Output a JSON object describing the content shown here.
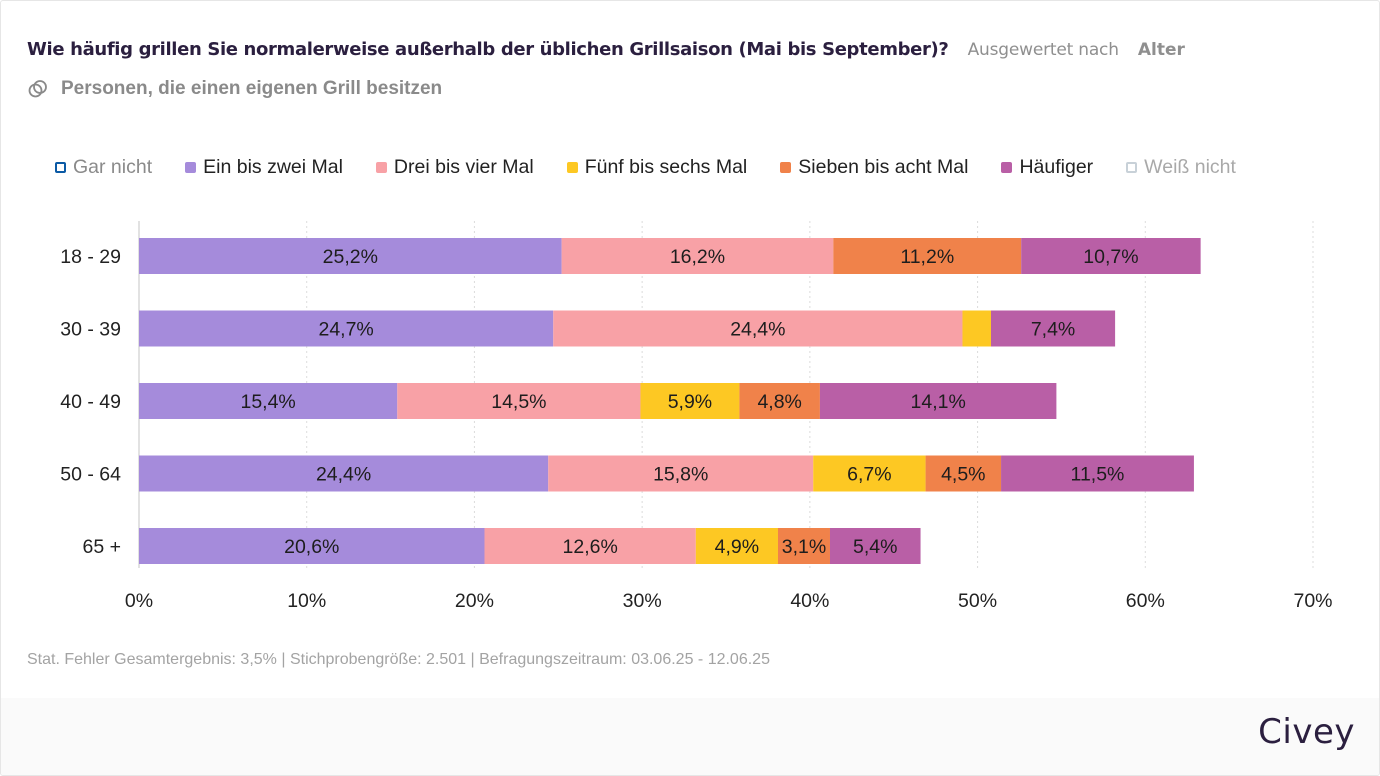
{
  "header": {
    "title": "Wie häufig grillen Sie normalerweise außerhalb der üblichen Grillsaison (Mai bis September)?",
    "evaluated_by_label": "Ausgewertet nach",
    "evaluated_by_value": "Alter",
    "filter_icon": "filter-circles-icon",
    "filter_label": "Personen, die einen eigenen Grill besitzen"
  },
  "legend": [
    {
      "label": "Gar nicht",
      "color": "#0b5aa5",
      "active": false,
      "marker": "hollow"
    },
    {
      "label": "Ein bis zwei Mal",
      "color": "#a58bdb",
      "active": true,
      "marker": "filled"
    },
    {
      "label": "Drei bis vier Mal",
      "color": "#f8a1a6",
      "active": true,
      "marker": "filled"
    },
    {
      "label": "Fünf bis sechs Mal",
      "color": "#fdc823",
      "active": true,
      "marker": "filled"
    },
    {
      "label": "Sieben bis acht Mal",
      "color": "#f0824a",
      "active": true,
      "marker": "filled"
    },
    {
      "label": "Häufiger",
      "color": "#b95fa6",
      "active": true,
      "marker": "filled"
    },
    {
      "label": "Weiß nicht",
      "color": "#c8d1d8",
      "active": false,
      "marker": "hollow"
    }
  ],
  "chart_data": {
    "type": "bar",
    "orientation": "horizontal",
    "stacked": true,
    "title": "Wie häufig grillen Sie normalerweise außerhalb der üblichen Grillsaison (Mai bis September)?",
    "xlabel": "",
    "ylabel": "",
    "categories": [
      "18 - 29",
      "30 - 39",
      "40 - 49",
      "50 - 64",
      "65 +"
    ],
    "series": [
      {
        "name": "Ein bis zwei Mal",
        "color": "#a58bdb",
        "values": [
          25.2,
          24.7,
          15.4,
          24.4,
          20.6
        ],
        "labels": [
          "25,2%",
          "24,7%",
          "15,4%",
          "24,4%",
          "20,6%"
        ]
      },
      {
        "name": "Drei bis vier Mal",
        "color": "#f8a1a6",
        "values": [
          16.2,
          24.4,
          14.5,
          15.8,
          12.6
        ],
        "labels": [
          "16,2%",
          "24,4%",
          "14,5%",
          "15,8%",
          "12,6%"
        ]
      },
      {
        "name": "Fünf bis sechs Mal",
        "color": "#fdc823",
        "values": [
          0,
          1.7,
          5.9,
          6.7,
          4.9
        ],
        "labels": [
          "",
          "",
          "5,9%",
          "6,7%",
          "4,9%"
        ]
      },
      {
        "name": "Sieben bis acht Mal",
        "color": "#f0824a",
        "values": [
          11.2,
          0,
          4.8,
          4.5,
          3.1
        ],
        "labels": [
          "11,2%",
          "",
          "4,8%",
          "4,5%",
          "3,1%"
        ]
      },
      {
        "name": "Häufiger",
        "color": "#b95fa6",
        "values": [
          10.7,
          7.4,
          14.1,
          11.5,
          5.4
        ],
        "labels": [
          "10,7%",
          "7,4%",
          "14,1%",
          "11,5%",
          "5,4%"
        ]
      }
    ],
    "hidden_series": [
      "Gar nicht",
      "Weiß nicht"
    ],
    "xlim": [
      0,
      70
    ],
    "x_ticks": [
      0,
      10,
      20,
      30,
      40,
      50,
      60,
      70
    ],
    "x_tick_labels": [
      "0%",
      "10%",
      "20%",
      "30%",
      "40%",
      "50%",
      "60%",
      "70%"
    ],
    "grid": true,
    "legend_position": "top"
  },
  "footer": {
    "note": "Stat. Fehler Gesamtergebnis: 3,5% | Stichprobengröße: 2.501 | Befragungszeitraum: 03.06.25 - 12.06.25",
    "brand": "Civey"
  }
}
